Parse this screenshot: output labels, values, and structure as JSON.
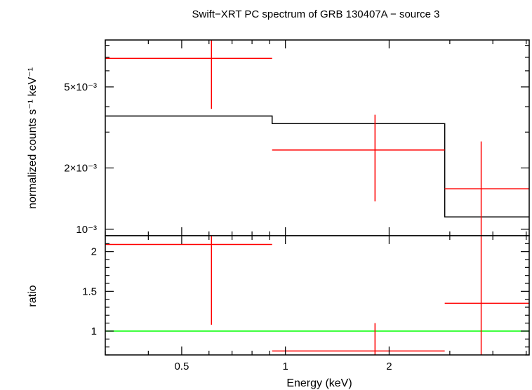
{
  "chart_data": {
    "type": "scatter",
    "title": "Swift−XRT PC spectrum of GRB 130407A − source 3",
    "xlabel": "Energy (keV)",
    "x_scale": "log",
    "xlim": [
      0.3,
      5.1
    ],
    "x_tick_labels": [
      "0.5",
      "1",
      "2"
    ],
    "x_ticks": [
      0.5,
      1,
      2
    ],
    "colors": {
      "data": "#ff0000",
      "model": "#000000",
      "unity": "#00ff00",
      "frame": "#000000"
    },
    "panels": [
      {
        "id": "spectrum",
        "ylabel": "normalized counts s⁻¹ keV⁻¹",
        "y_scale": "log",
        "ylim": [
          0.00093,
          0.0085
        ],
        "y_tick_labels": [
          "5×10⁻³",
          "2×10⁻³",
          "10⁻³"
        ],
        "y_ticks": [
          0.005,
          0.002,
          0.001
        ],
        "data": [
          {
            "x": 0.61,
            "xlo": 0.3,
            "xhi": 0.915,
            "y": 0.0069,
            "ylo": 0.0039,
            "yhi": 0.0085
          },
          {
            "x": 1.82,
            "xlo": 0.915,
            "xhi": 2.9,
            "y": 0.00245,
            "ylo": 0.00137,
            "yhi": 0.00365
          },
          {
            "x": 3.7,
            "xlo": 2.9,
            "xhi": 5.1,
            "y": 0.00158,
            "ylo": 0.00093,
            "yhi": 0.0027
          }
        ],
        "model": [
          {
            "xlo": 0.3,
            "xhi": 0.915,
            "y": 0.0036
          },
          {
            "xlo": 0.915,
            "xhi": 2.9,
            "y": 0.0033
          },
          {
            "xlo": 2.9,
            "xhi": 5.1,
            "y": 0.00115
          }
        ]
      },
      {
        "id": "ratio",
        "ylabel": "ratio",
        "y_scale": "linear",
        "ylim": [
          0.7,
          2.2
        ],
        "y_tick_labels": [
          "2",
          "1.5",
          "1"
        ],
        "y_ticks": [
          2,
          1.5,
          1
        ],
        "unity_line": 1,
        "data": [
          {
            "x": 0.61,
            "xlo": 0.3,
            "xhi": 0.915,
            "y": 2.09,
            "ylo": 1.08,
            "yhi": 2.2
          },
          {
            "x": 1.82,
            "xlo": 0.915,
            "xhi": 2.9,
            "y": 0.75,
            "ylo": 0.7,
            "yhi": 1.1
          },
          {
            "x": 3.7,
            "xlo": 2.9,
            "xhi": 5.1,
            "y": 1.35,
            "ylo": 0.7,
            "yhi": 2.2
          }
        ]
      }
    ]
  }
}
